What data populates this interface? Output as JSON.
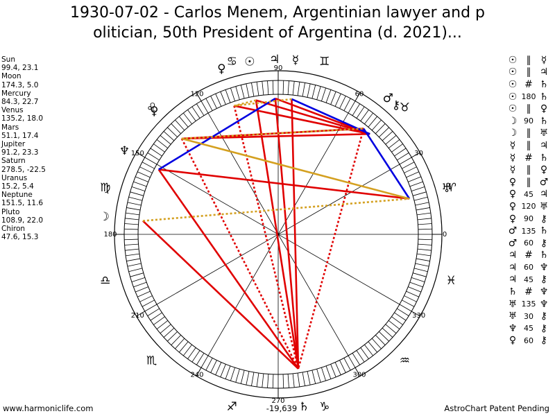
{
  "title": {
    "line1": "1930-07-02 - Carlos Menem, Argentinian lawyer and p",
    "line2": "olitician, 50th President of Argentina (d. 2021)..."
  },
  "planets": [
    {
      "name": "Sun",
      "values": "99.4, 23.1",
      "glyph": "☉"
    },
    {
      "name": "Moon",
      "values": "174.3, 5.0",
      "glyph": "☽"
    },
    {
      "name": "Mercury",
      "values": "84.3, 22.7",
      "glyph": "☿"
    },
    {
      "name": "Venus",
      "values": "135.2, 18.0",
      "glyph": "♀"
    },
    {
      "name": "Mars",
      "values": "51.1, 17.4",
      "glyph": "♂"
    },
    {
      "name": "Jupiter",
      "values": "91.2, 23.3",
      "glyph": "♃"
    },
    {
      "name": "Saturn",
      "values": "278.5, -22.5",
      "glyph": "♄"
    },
    {
      "name": "Uranus",
      "values": "15.2, 5.4",
      "glyph": "♅"
    },
    {
      "name": "Neptune",
      "values": "151.5, 11.6",
      "glyph": "♆"
    },
    {
      "name": "Pluto",
      "values": "108.9, 22.0",
      "glyph": "♀"
    },
    {
      "name": "Chiron",
      "values": "47.6, 15.3",
      "glyph": "⚷"
    }
  ],
  "aspects": [
    {
      "p1": "☉",
      "sym": "∥",
      "p2": "☿"
    },
    {
      "p1": "☉",
      "sym": "∥",
      "p2": "♃"
    },
    {
      "p1": "☉",
      "sym": "#",
      "p2": "♄"
    },
    {
      "p1": "☉",
      "sym": "180",
      "p2": "♄"
    },
    {
      "p1": "☉",
      "sym": "∥",
      "p2": "♀"
    },
    {
      "p1": "☽",
      "sym": "90",
      "p2": "♄"
    },
    {
      "p1": "☽",
      "sym": "∥",
      "p2": "♅"
    },
    {
      "p1": "☿",
      "sym": "∥",
      "p2": "♃"
    },
    {
      "p1": "☿",
      "sym": "#",
      "p2": "♄"
    },
    {
      "p1": "☿",
      "sym": "∥",
      "p2": "♀"
    },
    {
      "p1": "♀",
      "sym": "∥",
      "p2": "♂"
    },
    {
      "p1": "♀",
      "sym": "45",
      "p2": "♃"
    },
    {
      "p1": "♀",
      "sym": "120",
      "p2": "♅"
    },
    {
      "p1": "♀",
      "sym": "90",
      "p2": "⚷"
    },
    {
      "p1": "♂",
      "sym": "135",
      "p2": "♄"
    },
    {
      "p1": "♂",
      "sym": "60",
      "p2": "⚷"
    },
    {
      "p1": "♃",
      "sym": "#",
      "p2": "♄"
    },
    {
      "p1": "♃",
      "sym": "60",
      "p2": "♆"
    },
    {
      "p1": "♃",
      "sym": "45",
      "p2": "⚷"
    },
    {
      "p1": "♄",
      "sym": "#",
      "p2": "♆"
    },
    {
      "p1": "♅",
      "sym": "135",
      "p2": "♆"
    },
    {
      "p1": "♅",
      "sym": "30",
      "p2": "⚷"
    },
    {
      "p1": "♆",
      "sym": "45",
      "p2": "⚷"
    },
    {
      "p1": "♀",
      "sym": "60",
      "p2": "⚷"
    }
  ],
  "degree_labels": [
    {
      "deg": 0,
      "text": "0"
    },
    {
      "deg": 30,
      "text": "30"
    },
    {
      "deg": 60,
      "text": "60"
    },
    {
      "deg": 90,
      "text": "90"
    },
    {
      "deg": 120,
      "text": "120"
    },
    {
      "deg": 150,
      "text": "150"
    },
    {
      "deg": 180,
      "text": "180"
    },
    {
      "deg": 210,
      "text": "210"
    },
    {
      "deg": 240,
      "text": "240"
    },
    {
      "deg": 270,
      "text": "270"
    },
    {
      "deg": 300,
      "text": "300"
    },
    {
      "deg": 330,
      "text": "330"
    }
  ],
  "signs": [
    {
      "deg": 15,
      "glyph": "♈"
    },
    {
      "deg": 45,
      "glyph": "♉"
    },
    {
      "deg": 75,
      "glyph": "♊"
    },
    {
      "deg": 105,
      "glyph": "♋"
    },
    {
      "deg": 135,
      "glyph": "♌"
    },
    {
      "deg": 165,
      "glyph": "♍"
    },
    {
      "deg": 195,
      "glyph": "♎"
    },
    {
      "deg": 225,
      "glyph": "♏"
    },
    {
      "deg": 255,
      "glyph": "♐"
    },
    {
      "deg": 285,
      "glyph": "♑"
    },
    {
      "deg": 315,
      "glyph": "♒"
    },
    {
      "deg": 345,
      "glyph": "♓"
    }
  ],
  "chart_planets": [
    {
      "name": "sun",
      "glyph": "☉",
      "lon": 99.4
    },
    {
      "name": "moon",
      "glyph": "☽",
      "lon": 174.3
    },
    {
      "name": "mercury",
      "glyph": "☿",
      "lon": 84.3
    },
    {
      "name": "venus",
      "glyph": "♀",
      "lon": 135.2
    },
    {
      "name": "mars",
      "glyph": "♂",
      "lon": 51.1
    },
    {
      "name": "jupiter",
      "glyph": "♃",
      "lon": 91.2
    },
    {
      "name": "saturn",
      "glyph": "♄",
      "lon": 278.5
    },
    {
      "name": "uranus",
      "glyph": "♅",
      "lon": 15.2
    },
    {
      "name": "neptune",
      "glyph": "♆",
      "lon": 151.5
    },
    {
      "name": "pluto",
      "glyph": "♀",
      "lon": 108.9
    },
    {
      "name": "chiron",
      "glyph": "⚷",
      "lon": 47.6
    }
  ],
  "aspect_lines": [
    {
      "a": "sun",
      "b": "saturn",
      "color": "#e00000",
      "style": "solid"
    },
    {
      "a": "mercury",
      "b": "saturn",
      "color": "#e00000",
      "style": "solid"
    },
    {
      "a": "jupiter",
      "b": "saturn",
      "color": "#e00000",
      "style": "solid"
    },
    {
      "a": "saturn",
      "b": "neptune",
      "color": "#e00000",
      "style": "solid"
    },
    {
      "a": "mars",
      "b": "saturn",
      "color": "#e00000",
      "style": "dotted"
    },
    {
      "a": "moon",
      "b": "saturn",
      "color": "#e00000",
      "style": "solid"
    },
    {
      "a": "venus",
      "b": "saturn",
      "color": "#e00000",
      "style": "dotted"
    },
    {
      "a": "pluto",
      "b": "saturn",
      "color": "#e00000",
      "style": "dotted"
    },
    {
      "a": "venus",
      "b": "mars",
      "color": "#e00000",
      "style": "solid"
    },
    {
      "a": "neptune",
      "b": "uranus",
      "color": "#e00000",
      "style": "solid"
    },
    {
      "a": "jupiter",
      "b": "chiron",
      "color": "#e00000",
      "style": "solid"
    },
    {
      "a": "pluto",
      "b": "chiron",
      "color": "#e00000",
      "style": "solid"
    },
    {
      "a": "venus",
      "b": "chiron",
      "color": "#e00000",
      "style": "solid"
    },
    {
      "a": "sun",
      "b": "chiron",
      "color": "#e00000",
      "style": "solid"
    },
    {
      "a": "jupiter",
      "b": "neptune",
      "color": "#0000e0",
      "style": "solid"
    },
    {
      "a": "mercury",
      "b": "chiron",
      "color": "#0000e0",
      "style": "solid"
    },
    {
      "a": "mars",
      "b": "uranus",
      "color": "#0000e0",
      "style": "solid"
    },
    {
      "a": "venus",
      "b": "uranus",
      "color": "#d4a020",
      "style": "solid"
    },
    {
      "a": "moon",
      "b": "uranus",
      "color": "#d4a020",
      "style": "dotted"
    },
    {
      "a": "sun",
      "b": "pluto",
      "color": "#d4a020",
      "style": "dotted"
    },
    {
      "a": "venus",
      "b": "mars",
      "color": "#d4a020",
      "style": "dotted"
    },
    {
      "a": "mercury",
      "b": "pluto",
      "color": "#d4a020",
      "style": "dotted"
    }
  ],
  "footer": {
    "left": "www.harmoniclife.com",
    "right": "AstroChart Patent Pending",
    "bottom_value": "-19,639"
  },
  "colors": {
    "hard": "#e00000",
    "soft": "#0000e0",
    "minor": "#d4a020"
  }
}
